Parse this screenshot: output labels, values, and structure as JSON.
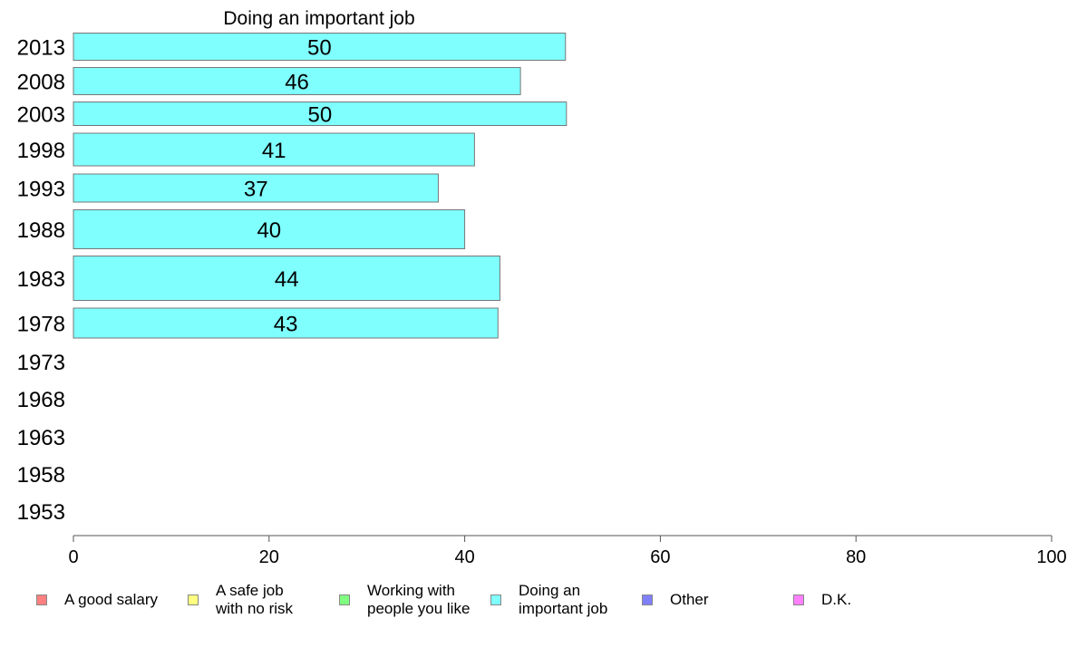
{
  "chart_data": {
    "type": "bar",
    "orientation": "horizontal",
    "title": "Doing an important job",
    "categories": [
      "2013",
      "2008",
      "2003",
      "1998",
      "1993",
      "1988",
      "1983",
      "1978",
      "1973",
      "1968",
      "1963",
      "1958",
      "1953"
    ],
    "values": [
      50,
      46,
      50,
      41,
      37,
      40,
      44,
      43,
      null,
      null,
      null,
      null,
      null
    ],
    "bar_values": [
      50.3,
      45.7,
      50.4,
      41.0,
      37.3,
      40.0,
      43.6,
      43.4,
      null,
      null,
      null,
      null,
      null
    ],
    "xlim": [
      0,
      100
    ],
    "xticks": [
      0,
      20,
      40,
      60,
      80,
      100
    ],
    "xlabel": "",
    "ylabel": "",
    "bar_color": "#80ffff",
    "legend": {
      "placement": "bottom",
      "items": [
        {
          "label": "A good salary",
          "color": "#ff8080"
        },
        {
          "label": "A safe job\nwith no risk",
          "color": "#ffff80"
        },
        {
          "label": "Working with\npeople you like",
          "color": "#80ff80"
        },
        {
          "label": "Doing an\nimportant job",
          "color": "#80ffff"
        },
        {
          "label": "Other",
          "color": "#8080ff"
        },
        {
          "label": "D.K.",
          "color": "#ff80ff"
        }
      ]
    }
  }
}
